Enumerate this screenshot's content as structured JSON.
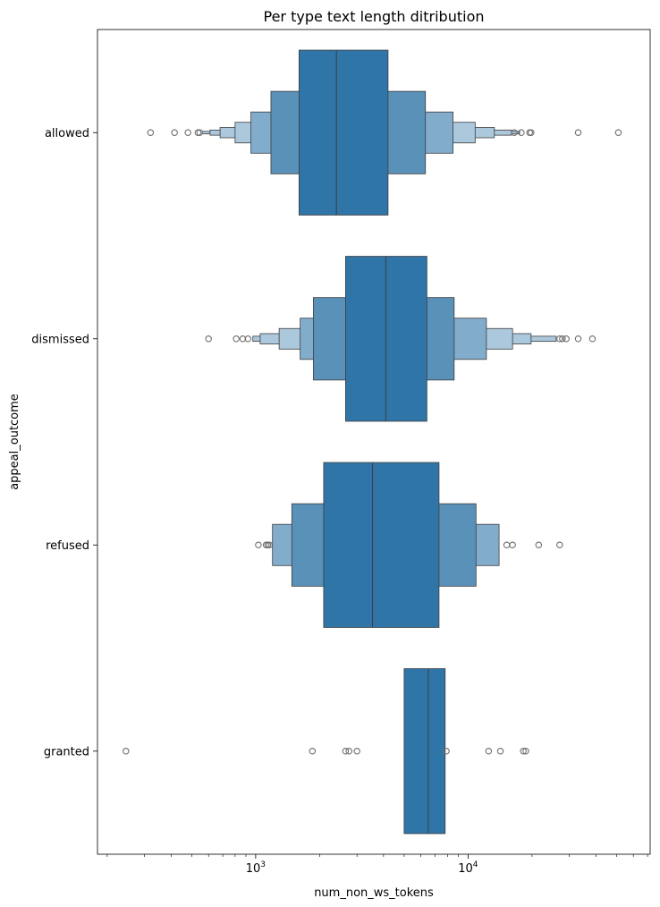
{
  "chart_data": {
    "type": "boxen",
    "orientation": "horizontal",
    "title": "Per type text length ditribution",
    "xlabel": "num_non_ws_tokens",
    "ylabel": "appeal_outcome",
    "x_scale": "log",
    "xlim": [
      180,
      72000
    ],
    "x_ticks": [
      {
        "value": 1000,
        "base": "10",
        "exp": "3"
      },
      {
        "value": 10000,
        "base": "10",
        "exp": "4"
      }
    ],
    "color": "#2f75a8",
    "categories": [
      "allowed",
      "dismissed",
      "refused",
      "granted"
    ],
    "series": [
      {
        "category": "allowed",
        "median": 2400,
        "boxes": [
          [
            1600,
            4200
          ],
          [
            1180,
            6300
          ],
          [
            950,
            8500
          ],
          [
            800,
            10800
          ],
          [
            680,
            13300
          ],
          [
            610,
            16000
          ],
          [
            560,
            17500
          ]
        ],
        "outliers": [
          320,
          415,
          480,
          535,
          545,
          16500,
          17800,
          19500,
          19800,
          33000,
          51000
        ]
      },
      {
        "category": "dismissed",
        "median": 4100,
        "boxes": [
          [
            2650,
            6400
          ],
          [
            1870,
            8600
          ],
          [
            1620,
            12200
          ],
          [
            1290,
            16200
          ],
          [
            1050,
            19800
          ],
          [
            970,
            26000
          ]
        ],
        "outliers": [
          600,
          810,
          870,
          920,
          27000,
          27800,
          29000,
          33000,
          38500
        ]
      },
      {
        "category": "refused",
        "median": 3550,
        "boxes": [
          [
            2090,
            7300
          ],
          [
            1480,
            10900
          ],
          [
            1200,
            14000
          ]
        ],
        "outliers": [
          1030,
          1120,
          1140,
          1160,
          15200,
          16200,
          21500,
          27000
        ]
      },
      {
        "category": "granted",
        "median": 6500,
        "boxes": [
          [
            5000,
            7800
          ]
        ],
        "outliers": [
          245,
          1850,
          2650,
          2750,
          3000,
          7900,
          12500,
          14200,
          18200,
          18700
        ]
      }
    ]
  }
}
